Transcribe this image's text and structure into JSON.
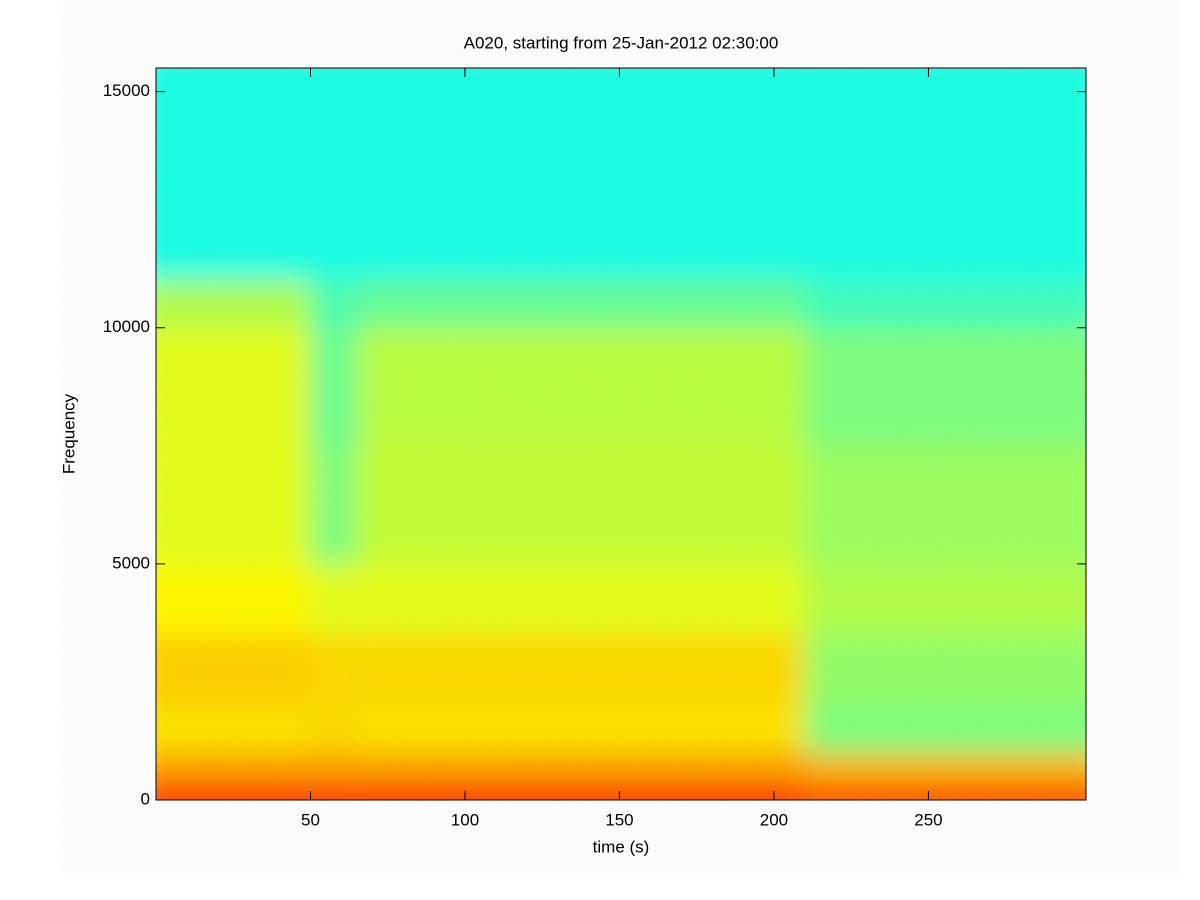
{
  "chart_data": {
    "type": "heatmap",
    "title": "A020, starting from 25-Jan-2012 02:30:00",
    "x_label": "time (s)",
    "y_label": "Frequency",
    "colormap": "jet",
    "x_edges": [
      0,
      50,
      65,
      210,
      301
    ],
    "y_edges": [
      0,
      300,
      1000,
      2000,
      3500,
      5000,
      7500,
      10000,
      11000,
      15500
    ],
    "z": [
      [
        0.85,
        0.85,
        0.85,
        0.82
      ],
      [
        0.72,
        0.72,
        0.72,
        0.7
      ],
      [
        0.65,
        0.66,
        0.65,
        0.5
      ],
      [
        0.67,
        0.66,
        0.66,
        0.52
      ],
      [
        0.63,
        0.6,
        0.6,
        0.55
      ],
      [
        0.6,
        0.5,
        0.57,
        0.53
      ],
      [
        0.6,
        0.48,
        0.56,
        0.5
      ],
      [
        0.55,
        0.45,
        0.48,
        0.44
      ],
      [
        0.4,
        0.4,
        0.4,
        0.4
      ]
    ],
    "xlim": [
      0,
      301
    ],
    "ylim": [
      0,
      15500
    ],
    "xticks": [
      50,
      100,
      150,
      200,
      250
    ],
    "yticks": [
      0,
      5000,
      10000,
      15000
    ]
  }
}
